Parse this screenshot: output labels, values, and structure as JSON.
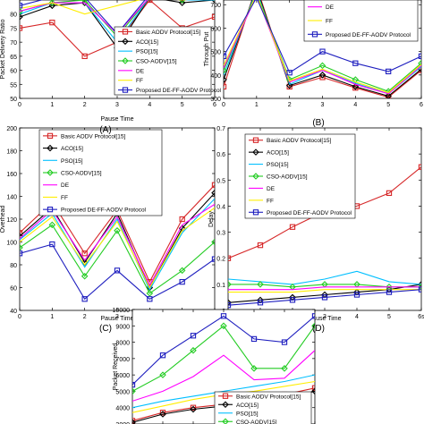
{
  "panel_letters": [
    "(A)",
    "(B)",
    "(C)",
    "(D)"
  ],
  "chart_data": [
    {
      "type": "line",
      "panel": "(A)",
      "xlabel": "Pause Time",
      "ylabel": "Packet Delivery Ratio",
      "x": [
        0,
        1,
        2,
        3,
        4,
        5,
        6
      ],
      "xlim": [
        0,
        6
      ],
      "ylim": [
        50,
        85
      ],
      "yticks": [
        50,
        55,
        60,
        65,
        70,
        75,
        80
      ],
      "legend": "lower-right",
      "series": [
        {
          "name": "Basic AODV Protocol[15]",
          "color": "#d62728",
          "marker": "square",
          "values": [
            75,
            77,
            65,
            70,
            85,
            75,
            79
          ]
        },
        {
          "name": "ACO[15]",
          "color": "#000000",
          "marker": "diamond",
          "values": [
            79,
            83,
            84,
            68,
            86,
            84,
            85
          ]
        },
        {
          "name": "PSO[15]",
          "color": "#00bfff",
          "marker": "none",
          "values": [
            80,
            84,
            84,
            70,
            86,
            85,
            85
          ]
        },
        {
          "name": "CSO-AODV[15]",
          "color": "#22cc22",
          "marker": "diamond",
          "values": [
            81,
            84,
            85,
            72,
            86,
            85,
            86
          ]
        },
        {
          "name": "DE",
          "color": "#ff00ff",
          "marker": "none",
          "values": [
            81,
            84,
            84,
            73,
            86,
            85,
            86
          ]
        },
        {
          "name": "FF",
          "color": "#ffee00",
          "marker": "none",
          "values": [
            82,
            84,
            80,
            83,
            86,
            85,
            86
          ]
        },
        {
          "name": "Proposed DE-FF-AODV Protocol",
          "color": "#1f1fbf",
          "marker": "square",
          "values": [
            83,
            86,
            86,
            73,
            87,
            86,
            87
          ]
        }
      ]
    },
    {
      "type": "line",
      "panel": "(B)",
      "xlabel": "",
      "ylabel": "Through Put",
      "x": [
        0,
        1,
        2,
        3,
        4,
        5,
        6
      ],
      "xlim": [
        0,
        6
      ],
      "ylim": [
        300,
        720
      ],
      "yticks": [
        300,
        400,
        500,
        600,
        700
      ],
      "legend": "top-right",
      "series": [
        {
          "name": "Basic AODV Protocol[15]",
          "color": "#d62728",
          "marker": "square",
          "values": [
            350,
            780,
            350,
            390,
            345,
            305,
            420
          ]
        },
        {
          "name": "ACO[15]",
          "color": "#000000",
          "marker": "diamond",
          "values": [
            380,
            770,
            355,
            400,
            350,
            310,
            425
          ]
        },
        {
          "name": "PSO[15]",
          "color": "#00bfff",
          "marker": "none",
          "values": [
            400,
            760,
            360,
            420,
            365,
            320,
            435
          ]
        },
        {
          "name": "CSO-AODV[15]",
          "color": "#22cc22",
          "marker": "diamond",
          "values": [
            420,
            750,
            380,
            440,
            380,
            330,
            450
          ]
        },
        {
          "name": "DE",
          "color": "#ff00ff",
          "marker": "none",
          "values": [
            430,
            740,
            370,
            420,
            360,
            320,
            440
          ]
        },
        {
          "name": "FF",
          "color": "#ffee00",
          "marker": "none",
          "values": [
            440,
            745,
            375,
            425,
            370,
            325,
            445
          ]
        },
        {
          "name": "Proposed DE-FF-AODV Protocol",
          "color": "#1f1fbf",
          "marker": "square",
          "values": [
            480,
            730,
            410,
            500,
            450,
            415,
            480
          ]
        }
      ],
      "legend_entries": [
        "DE",
        "FF",
        "Proposed DE-FF-AODV Protocol"
      ]
    },
    {
      "type": "line",
      "panel": "(C)",
      "xlabel": "Pause Time",
      "ylabel": "Overhead",
      "x": [
        0,
        1,
        2,
        3,
        4,
        5,
        6
      ],
      "xlim": [
        0,
        6
      ],
      "ylim": [
        40,
        200
      ],
      "yticks": [
        40,
        60,
        80,
        100,
        120,
        140,
        160,
        180,
        200
      ],
      "legend": "top-left",
      "series": [
        {
          "name": "Basic AODV Protocol[15]",
          "color": "#d62728",
          "marker": "square",
          "values": [
            108,
            135,
            90,
            128,
            65,
            120,
            150
          ]
        },
        {
          "name": "ACO[15]",
          "color": "#000000",
          "marker": "diamond",
          "values": [
            105,
            130,
            82,
            125,
            60,
            112,
            143
          ]
        },
        {
          "name": "PSO[15]",
          "color": "#00bfff",
          "marker": "none",
          "values": [
            102,
            125,
            78,
            120,
            58,
            108,
            138
          ]
        },
        {
          "name": "CSO-AODV[15]",
          "color": "#22cc22",
          "marker": "diamond",
          "values": [
            95,
            115,
            70,
            110,
            55,
            75,
            100
          ]
        },
        {
          "name": "DE",
          "color": "#ff00ff",
          "marker": "none",
          "values": [
            103,
            128,
            84,
            122,
            62,
            115,
            133
          ]
        },
        {
          "name": "FF",
          "color": "#ffee00",
          "marker": "none",
          "values": [
            100,
            122,
            80,
            118,
            60,
            110,
            130
          ]
        },
        {
          "name": "Proposed DE-FF-AODV Protocol",
          "color": "#1f1fbf",
          "marker": "square",
          "values": [
            90,
            98,
            50,
            75,
            50,
            65,
            85
          ]
        }
      ]
    },
    {
      "type": "line",
      "panel": "(D)",
      "xlabel": "Pause Time",
      "ylabel": "Delay",
      "x": [
        0,
        1,
        2,
        3,
        4,
        5,
        6
      ],
      "xlim": [
        0,
        6
      ],
      "xtick_labels": [
        "0",
        "1",
        "2",
        "3",
        "4",
        "5",
        "6s"
      ],
      "ylim": [
        0,
        0.7
      ],
      "yticks": [
        0,
        0.1,
        0.2,
        0.3,
        0.4,
        0.5,
        0.6,
        0.7
      ],
      "legend": "top-left",
      "series": [
        {
          "name": "Basic AODV Protocol[15]",
          "color": "#d62728",
          "marker": "square",
          "values": [
            0.2,
            0.25,
            0.32,
            0.38,
            0.4,
            0.45,
            0.55
          ]
        },
        {
          "name": "ACO[15]",
          "color": "#000000",
          "marker": "diamond",
          "values": [
            0.03,
            0.04,
            0.05,
            0.06,
            0.07,
            0.08,
            0.1
          ]
        },
        {
          "name": "PSO[15]",
          "color": "#00bfff",
          "marker": "none",
          "values": [
            0.12,
            0.11,
            0.1,
            0.12,
            0.15,
            0.11,
            0.1
          ]
        },
        {
          "name": "CSO-AODV[15]",
          "color": "#22cc22",
          "marker": "diamond",
          "values": [
            0.1,
            0.1,
            0.09,
            0.1,
            0.1,
            0.09,
            0.09
          ]
        },
        {
          "name": "DE",
          "color": "#ff00ff",
          "marker": "none",
          "values": [
            0.08,
            0.08,
            0.08,
            0.09,
            0.09,
            0.09,
            0.09
          ]
        },
        {
          "name": "FF",
          "color": "#ffee00",
          "marker": "none",
          "values": [
            0.07,
            0.07,
            0.07,
            0.08,
            0.08,
            0.08,
            0.08
          ]
        },
        {
          "name": "Proposed DE-FF-AODV Protocol",
          "color": "#1f1fbf",
          "marker": "square",
          "values": [
            0.02,
            0.03,
            0.04,
            0.05,
            0.06,
            0.07,
            0.08
          ]
        }
      ]
    },
    {
      "type": "line",
      "panel": "",
      "xlabel": "",
      "ylabel": "Packet Received",
      "x": [
        0,
        1,
        2,
        3,
        4,
        5,
        6
      ],
      "xlim": [
        0,
        6
      ],
      "ylim": [
        3000,
        10000
      ],
      "yticks": [
        3000,
        4000,
        5000,
        6000,
        7000,
        8000,
        9000,
        10000
      ],
      "legend": "bottom-center",
      "series": [
        {
          "name": "Basic AODV Protocol[15]",
          "color": "#d62728",
          "marker": "square",
          "values": [
            3200,
            3700,
            4000,
            4200,
            4500,
            4800,
            5200
          ]
        },
        {
          "name": "ACO[15]",
          "color": "#000000",
          "marker": "diamond",
          "values": [
            3100,
            3600,
            3900,
            4100,
            4300,
            4600,
            5000
          ]
        },
        {
          "name": "PSO[15]",
          "color": "#00bfff",
          "marker": "none",
          "values": [
            4000,
            4400,
            4700,
            5000,
            5300,
            5600,
            6000
          ]
        },
        {
          "name": "CSO-AODV[15]",
          "color": "#22cc22",
          "marker": "diamond",
          "values": [
            5000,
            6000,
            7500,
            9000,
            6400,
            6400,
            9000
          ]
        },
        {
          "name": "DE",
          "color": "#ff00ff",
          "marker": "none",
          "values": [
            4400,
            5000,
            5900,
            7200,
            5700,
            5800,
            7500
          ]
        },
        {
          "name": "FF",
          "color": "#ffee00",
          "marker": "none",
          "values": [
            3700,
            4100,
            4500,
            4800,
            5000,
            5300,
            5600
          ]
        },
        {
          "name": "Proposed DE-FF-AODV Protocol",
          "color": "#1f1fbf",
          "marker": "square",
          "values": [
            5400,
            7200,
            8400,
            9600,
            8200,
            8000,
            9600
          ]
        }
      ],
      "legend_entries": [
        "Basic AODV Protocol[15]",
        "ACO[15]",
        "PSO[15]",
        "CSO-AODV[15]"
      ]
    }
  ]
}
